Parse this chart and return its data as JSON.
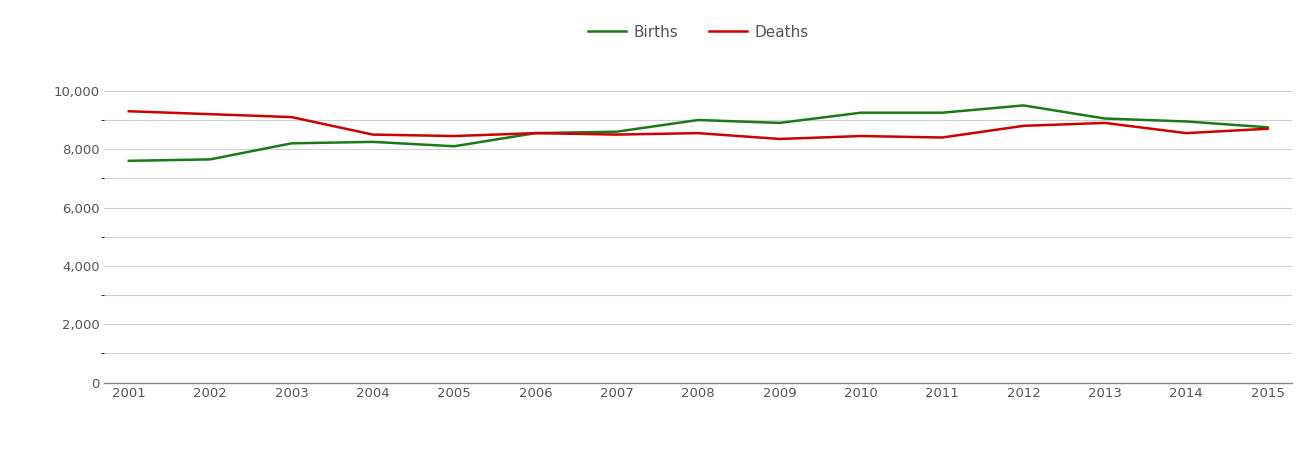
{
  "years": [
    2001,
    2002,
    2003,
    2004,
    2005,
    2006,
    2007,
    2008,
    2009,
    2010,
    2011,
    2012,
    2013,
    2014,
    2015
  ],
  "births": [
    7600,
    7650,
    8200,
    8250,
    8100,
    8550,
    8600,
    9000,
    8900,
    9250,
    9250,
    9500,
    9050,
    8950,
    8750
  ],
  "deaths": [
    9300,
    9200,
    9100,
    8500,
    8450,
    8550,
    8500,
    8550,
    8350,
    8450,
    8400,
    8800,
    8900,
    8550,
    8700
  ],
  "births_color": "#1a7a1a",
  "deaths_color": "#cc0000",
  "line_width": 1.8,
  "legend_births": "Births",
  "legend_deaths": "Deaths",
  "ylim": [
    0,
    10800
  ],
  "yticks": [
    0,
    2000,
    4000,
    6000,
    8000,
    10000
  ],
  "yticks_minor": [
    1000,
    3000,
    5000,
    7000,
    9000
  ],
  "background_color": "#ffffff",
  "grid_color": "#d0d0d0",
  "text_color": "#555555"
}
